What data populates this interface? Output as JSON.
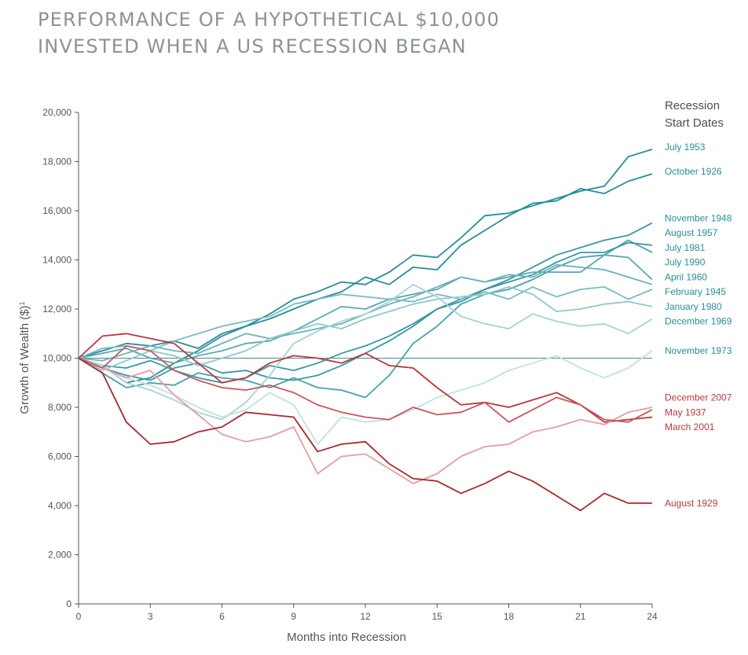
{
  "title": {
    "line1": "PERFORMANCE OF A HYPOTHETICAL $10,000",
    "line2": "INVESTED WHEN A US RECESSION BEGAN"
  },
  "chart_data": {
    "type": "line",
    "xlabel": "Months into Recession",
    "ylabel": "Growth of Wealth ($)",
    "ylabel_superscript": "1",
    "legend_title_line1": "Recession",
    "legend_title_line2": "Start Dates",
    "xlim": [
      0,
      24
    ],
    "ylim": [
      0,
      20000
    ],
    "x_ticks": [
      0,
      3,
      6,
      9,
      12,
      15,
      18,
      21,
      24
    ],
    "y_ticks": [
      0,
      2000,
      4000,
      6000,
      8000,
      10000,
      12000,
      14000,
      16000,
      18000,
      20000
    ],
    "y_tick_labels": [
      "0",
      "2,000",
      "4,000",
      "6,000",
      "8,000",
      "10,000",
      "12,000",
      "14,000",
      "16,000",
      "18,000",
      "20,000"
    ],
    "reference_line": 10000,
    "x": [
      0,
      1,
      2,
      3,
      4,
      5,
      6,
      7,
      8,
      9,
      10,
      11,
      12,
      13,
      14,
      15,
      16,
      17,
      18,
      19,
      20,
      21,
      22,
      23,
      24
    ],
    "series": [
      {
        "name": "July 1953",
        "color": "#2a8d98",
        "values": [
          10000,
          10300,
          10600,
          10500,
          10700,
          10400,
          11000,
          11300,
          11800,
          12400,
          12700,
          13100,
          13000,
          13500,
          14200,
          14100,
          14900,
          15800,
          15900,
          16200,
          16500,
          16800,
          17000,
          18200,
          18500
        ]
      },
      {
        "name": "October 1926",
        "color": "#2a8d98",
        "values": [
          10000,
          9700,
          9000,
          9200,
          9800,
          10300,
          10900,
          11300,
          11600,
          12000,
          12400,
          12700,
          13300,
          13000,
          13700,
          13600,
          14600,
          15200,
          15800,
          16300,
          16400,
          16900,
          16700,
          17200,
          17500
        ]
      },
      {
        "name": "November 1948",
        "color": "#3a98a2",
        "values": [
          10000,
          9700,
          9600,
          9900,
          9500,
          9200,
          9000,
          9200,
          9700,
          9500,
          9800,
          10200,
          10500,
          10900,
          11400,
          12000,
          12400,
          12800,
          13200,
          13700,
          14200,
          14500,
          14800,
          15000,
          15500
        ]
      },
      {
        "name": "August 1957",
        "color": "#4aa2ab",
        "values": [
          10000,
          9400,
          8800,
          9000,
          8900,
          9400,
          9200,
          9100,
          8800,
          9200,
          8800,
          8700,
          8400,
          9300,
          10600,
          11300,
          12200,
          12600,
          12800,
          13200,
          13700,
          14100,
          14200,
          14800,
          14300
        ]
      },
      {
        "name": "July 1981",
        "color": "#3a98a2",
        "values": [
          10000,
          9600,
          9300,
          9100,
          9600,
          9800,
          9400,
          9500,
          9200,
          9100,
          9300,
          9700,
          10200,
          10700,
          11300,
          12000,
          12300,
          12800,
          13100,
          13400,
          13900,
          14300,
          14300,
          14700,
          14600
        ]
      },
      {
        "name": "July 1990",
        "color": "#5aa9b0",
        "values": [
          10000,
          10200,
          10400,
          10000,
          9800,
          10100,
          10300,
          10600,
          10700,
          11100,
          11600,
          12100,
          12000,
          12400,
          12600,
          12800,
          13300,
          13100,
          13300,
          13500,
          13500,
          13500,
          14200,
          14100,
          13200
        ]
      },
      {
        "name": "April 1960",
        "color": "#6ab2b8",
        "values": [
          10000,
          9900,
          10200,
          10500,
          10300,
          10200,
          10600,
          11000,
          10800,
          11000,
          11200,
          11400,
          11800,
          12200,
          12500,
          12900,
          13300,
          13100,
          13400,
          13300,
          13800,
          13700,
          13600,
          13300,
          13000
        ]
      },
      {
        "name": "February 1945",
        "color": "#79bbc0",
        "values": [
          10000,
          10400,
          10500,
          10300,
          10700,
          11000,
          11300,
          11500,
          11700,
          12200,
          12400,
          12600,
          12500,
          12400,
          12300,
          12600,
          12400,
          12700,
          12400,
          12900,
          12500,
          12800,
          12900,
          12400,
          12800
        ]
      },
      {
        "name": "January 1980",
        "color": "#8fc8cc",
        "values": [
          10000,
          9500,
          9900,
          10300,
          10100,
          9700,
          10000,
          10300,
          10800,
          11100,
          11400,
          11200,
          11600,
          11900,
          12200,
          12400,
          12500,
          12600,
          12900,
          12600,
          11900,
          12000,
          12200,
          12300,
          12100
        ]
      },
      {
        "name": "December 1969",
        "color": "#a6d3d6",
        "values": [
          10000,
          9700,
          9000,
          8700,
          8300,
          7800,
          7500,
          8200,
          9300,
          10600,
          11100,
          11500,
          11800,
          12300,
          13000,
          12500,
          11700,
          11400,
          11200,
          11800,
          11500,
          11300,
          11400,
          11000,
          11600
        ]
      },
      {
        "name": "November 1973",
        "color": "#c2e0e2",
        "values": [
          10000,
          9600,
          9200,
          8900,
          8500,
          8000,
          7600,
          7900,
          8600,
          8100,
          6500,
          7600,
          7400,
          7500,
          7900,
          8400,
          8700,
          9000,
          9500,
          9800,
          10100,
          9600,
          9200,
          9600,
          10300
        ]
      },
      {
        "name": "December 2007",
        "color": "#b9383d",
        "values": [
          10000,
          10900,
          11000,
          10800,
          10600,
          9800,
          9000,
          9200,
          9800,
          10100,
          10000,
          9800,
          10200,
          9700,
          9600,
          8800,
          8100,
          8200,
          8000,
          8300,
          8600,
          8100,
          7400,
          7500,
          7600
        ]
      },
      {
        "name": "May 1937",
        "color": "#e59ea0",
        "values": [
          10000,
          9600,
          9200,
          9500,
          8500,
          7700,
          6900,
          6600,
          6800,
          7200,
          5300,
          6000,
          6100,
          5500,
          4900,
          5300,
          6000,
          6400,
          6500,
          7000,
          7200,
          7500,
          7300,
          7800,
          8000
        ]
      },
      {
        "name": "March 2001",
        "color": "#c8575b",
        "values": [
          10000,
          9600,
          10500,
          10300,
          9500,
          9100,
          8800,
          8700,
          8900,
          8600,
          8100,
          7800,
          7600,
          7500,
          8000,
          7700,
          7800,
          8200,
          7400,
          7900,
          8400,
          8100,
          7500,
          7400,
          7900
        ]
      },
      {
        "name": "August 1929",
        "color": "#a82a30",
        "values": [
          10000,
          9400,
          7400,
          6500,
          6600,
          7000,
          7200,
          7800,
          7700,
          7600,
          6200,
          6500,
          6600,
          5700,
          5100,
          5000,
          4500,
          4900,
          5400,
          5000,
          4400,
          3800,
          4500,
          4100,
          4100
        ]
      }
    ],
    "labels": [
      {
        "series": "July 1953",
        "text": "July 1953",
        "color": "#2a8d98",
        "y": 18600
      },
      {
        "series": "October 1926",
        "text": "October 1926",
        "color": "#2a8d98",
        "y": 17600
      },
      {
        "series": "November 1948",
        "text": "November 1948",
        "color": "#2a8d98",
        "y": 15700
      },
      {
        "series": "August 1957",
        "text": "August 1957",
        "color": "#2a8d98",
        "y": 15100
      },
      {
        "series": "July 1981",
        "text": "July 1981",
        "color": "#2a8d98",
        "y": 14500
      },
      {
        "series": "July 1990",
        "text": "July 1990",
        "color": "#2a8d98",
        "y": 13900
      },
      {
        "series": "April 1960",
        "text": "April 1960",
        "color": "#2a8d98",
        "y": 13300
      },
      {
        "series": "February 1945",
        "text": "February 1945",
        "color": "#2a8d98",
        "y": 12700
      },
      {
        "series": "January 1980",
        "text": "January 1980",
        "color": "#2a8d98",
        "y": 12100
      },
      {
        "series": "December 1969",
        "text": "December 1969",
        "color": "#2a8d98",
        "y": 11500
      },
      {
        "series": "November 1973",
        "text": "November 1973",
        "color": "#2a8d98",
        "y": 10300
      },
      {
        "series": "December 2007",
        "text": "December 2007",
        "color": "#b9383d",
        "y": 8400
      },
      {
        "series": "May 1937",
        "text": "May 1937",
        "color": "#b9383d",
        "y": 7800
      },
      {
        "series": "March 2001",
        "text": "March 2001",
        "color": "#b9383d",
        "y": 7200
      },
      {
        "series": "August 1929",
        "text": "August 1929",
        "color": "#b9383d",
        "y": 4100
      }
    ]
  }
}
